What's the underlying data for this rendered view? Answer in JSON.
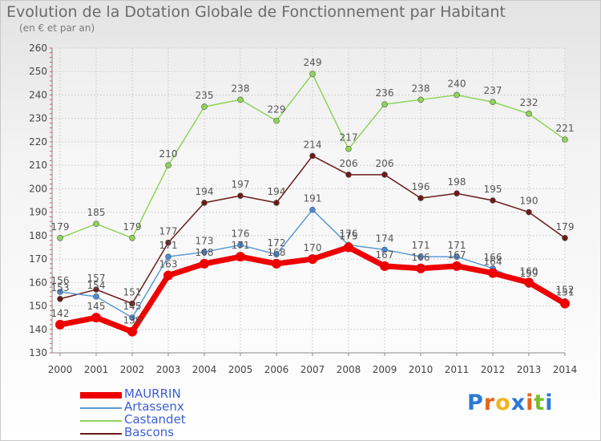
{
  "title": "Evolution de la Dotation Globale de Fonctionnement par Habitant",
  "subtitle": "(en € et par an)",
  "logo": {
    "text": "Proxiti",
    "letter_colors": [
      "#2b79d8",
      "#e8641c",
      "#f0b41c",
      "#2b79d8",
      "#e8641c",
      "#7cbd2a",
      "#2b79d8"
    ]
  },
  "chart_data": {
    "type": "line",
    "title": "Evolution de la Dotation Globale de Fonctionnement par Habitant",
    "subtitle": "(en € et par an)",
    "xlabel": "",
    "ylabel": "",
    "ylim": [
      130,
      260
    ],
    "yticks": [
      130,
      140,
      150,
      160,
      170,
      180,
      190,
      200,
      210,
      220,
      230,
      240,
      250,
      260
    ],
    "grid": true,
    "categories": [
      "2000",
      "2001",
      "2002",
      "2003",
      "2004",
      "2005",
      "2006",
      "2007",
      "2008",
      "2009",
      "2010",
      "2011",
      "2012",
      "2013",
      "2014"
    ],
    "series": [
      {
        "name": "MAURRIN",
        "color": "#ee0000",
        "values": [
          142,
          145,
          139,
          163,
          168,
          171,
          168,
          170,
          175,
          167,
          166,
          167,
          164,
          160,
          151
        ]
      },
      {
        "name": "Artassenx",
        "color": "#5b9bd5",
        "values": [
          156,
          154,
          145,
          171,
          173,
          176,
          172,
          191,
          176,
          174,
          171,
          171,
          166,
          159,
          152
        ]
      },
      {
        "name": "Castandet",
        "color": "#8fd45a",
        "values": [
          179,
          185,
          179,
          210,
          235,
          238,
          229,
          249,
          217,
          236,
          238,
          240,
          237,
          232,
          221
        ]
      },
      {
        "name": "Bascons",
        "color": "#6b1a1a",
        "values": [
          153,
          157,
          151,
          177,
          194,
          197,
          194,
          214,
          206,
          206,
          196,
          198,
          195,
          190,
          179
        ]
      }
    ]
  }
}
